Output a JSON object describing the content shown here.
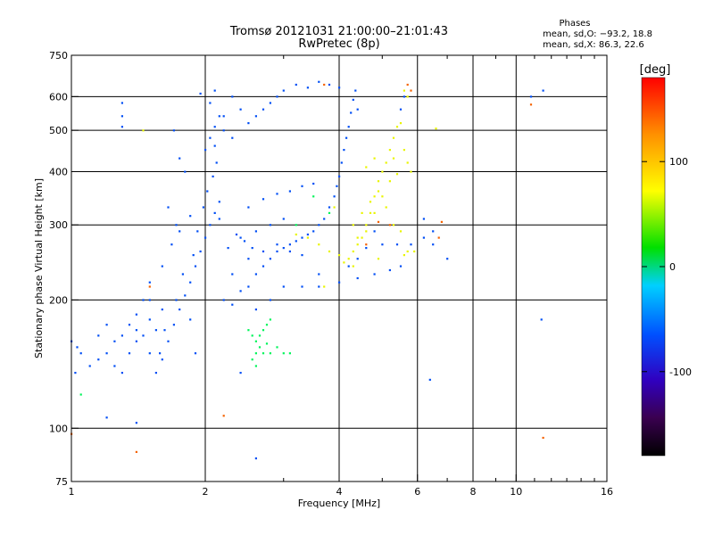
{
  "chart_data": {
    "type": "scatter",
    "title": "Tromsø 20121031 21:00:00–21:01:43",
    "subtitle": "RwPretec (8p)",
    "xlabel": "Frequency [MHz]",
    "ylabel": "Stationary phase Virtual Height [km]",
    "x_scale": "log",
    "y_scale": "log",
    "xlim": [
      1,
      16
    ],
    "ylim": [
      75,
      750
    ],
    "x_ticks": [
      1,
      2,
      4,
      6,
      8,
      10,
      16
    ],
    "x_tick_labels": [
      "1",
      "2",
      "4",
      "6",
      "8",
      "10",
      "16"
    ],
    "y_ticks": [
      75,
      100,
      200,
      300,
      400,
      500,
      600,
      750
    ],
    "y_tick_labels": [
      "75",
      "100",
      "200",
      "300",
      "400",
      "500",
      "600",
      "750"
    ],
    "x_gridlines": [
      2,
      4,
      6,
      8,
      10
    ],
    "y_gridlines": [
      100,
      200,
      300,
      400,
      500,
      600
    ],
    "phase_stats": {
      "title": "Phases",
      "o_line": "mean, sd,O: −93.2, 18.8",
      "x_line": "mean, sd,X:  86.3, 22.6"
    },
    "colorbar": {
      "label": "[deg]",
      "range": [
        -180,
        180
      ],
      "ticks": [
        100,
        0,
        -100
      ],
      "tick_labels": [
        "100",
        "0",
        "-100"
      ]
    },
    "series": [
      {
        "phase": -100,
        "points": [
          [
            1.55,
            135
          ],
          [
            1.6,
            145
          ],
          [
            1.65,
            160
          ],
          [
            1.7,
            175
          ],
          [
            1.75,
            190
          ],
          [
            1.8,
            205
          ],
          [
            1.85,
            220
          ],
          [
            1.9,
            240
          ],
          [
            1.95,
            260
          ],
          [
            2.0,
            280
          ],
          [
            2.05,
            300
          ],
          [
            2.1,
            320
          ],
          [
            2.15,
            340
          ],
          [
            1.58,
            150
          ],
          [
            1.62,
            170
          ],
          [
            1.72,
            200
          ],
          [
            1.78,
            230
          ],
          [
            1.88,
            255
          ],
          [
            1.92,
            290
          ],
          [
            1.98,
            330
          ],
          [
            2.02,
            360
          ],
          [
            2.08,
            390
          ],
          [
            2.12,
            420
          ],
          [
            2.0,
            450
          ],
          [
            2.05,
            480
          ],
          [
            2.1,
            510
          ],
          [
            2.15,
            540
          ],
          [
            2.05,
            580
          ],
          [
            1.95,
            610
          ],
          [
            2.1,
            620
          ],
          [
            1.7,
            500
          ],
          [
            1.75,
            430
          ],
          [
            1.8,
            400
          ],
          [
            1.65,
            330
          ],
          [
            1.72,
            300
          ],
          [
            1.68,
            270
          ],
          [
            1.6,
            240
          ],
          [
            1.5,
            220
          ],
          [
            1.45,
            200
          ],
          [
            1.4,
            185
          ],
          [
            1.35,
            175
          ],
          [
            1.3,
            165
          ],
          [
            1.25,
            160
          ],
          [
            1.2,
            150
          ],
          [
            1.15,
            145
          ],
          [
            1.1,
            140
          ],
          [
            1.05,
            150
          ],
          [
            1.02,
            135
          ],
          [
            1.03,
            155
          ],
          [
            1.25,
            140
          ],
          [
            1.3,
            135
          ],
          [
            1.35,
            150
          ],
          [
            1.45,
            165
          ],
          [
            1.55,
            170
          ],
          [
            1.6,
            190
          ],
          [
            1.85,
            180
          ],
          [
            2.2,
            200
          ],
          [
            2.3,
            195
          ],
          [
            2.4,
            210
          ],
          [
            2.5,
            215
          ],
          [
            2.6,
            230
          ],
          [
            2.7,
            240
          ],
          [
            2.8,
            250
          ],
          [
            2.9,
            260
          ],
          [
            3.0,
            265
          ],
          [
            3.1,
            270
          ],
          [
            3.2,
            275
          ],
          [
            3.3,
            280
          ],
          [
            3.4,
            285
          ],
          [
            3.5,
            290
          ],
          [
            3.6,
            300
          ],
          [
            3.7,
            310
          ],
          [
            3.8,
            330
          ],
          [
            3.9,
            350
          ],
          [
            3.95,
            370
          ],
          [
            4.0,
            390
          ],
          [
            4.05,
            420
          ],
          [
            4.1,
            450
          ],
          [
            4.15,
            480
          ],
          [
            4.2,
            510
          ],
          [
            4.25,
            550
          ],
          [
            4.3,
            590
          ],
          [
            4.35,
            620
          ],
          [
            4.4,
            560
          ],
          [
            2.3,
            230
          ],
          [
            2.5,
            250
          ],
          [
            2.7,
            260
          ],
          [
            2.9,
            270
          ],
          [
            3.1,
            260
          ],
          [
            3.3,
            255
          ],
          [
            2.4,
            280
          ],
          [
            2.6,
            290
          ],
          [
            2.8,
            300
          ],
          [
            3.0,
            310
          ],
          [
            2.5,
            520
          ],
          [
            2.6,
            540
          ],
          [
            2.7,
            560
          ],
          [
            2.8,
            580
          ],
          [
            2.9,
            600
          ],
          [
            3.0,
            620
          ],
          [
            3.2,
            640
          ],
          [
            3.4,
            630
          ],
          [
            3.6,
            650
          ],
          [
            3.8,
            640
          ],
          [
            4.0,
            630
          ],
          [
            2.3,
            600
          ],
          [
            2.4,
            560
          ],
          [
            2.2,
            540
          ],
          [
            2.2,
            500
          ],
          [
            2.3,
            480
          ],
          [
            2.1,
            460
          ],
          [
            1.3,
            580
          ],
          [
            1.3,
            540
          ],
          [
            1.5,
            200
          ],
          [
            1.5,
            180
          ],
          [
            1.4,
            170
          ],
          [
            1.2,
            175
          ],
          [
            1.15,
            165
          ],
          [
            1.0,
            160
          ],
          [
            2.35,
            285
          ],
          [
            2.45,
            275
          ],
          [
            2.55,
            265
          ],
          [
            3.0,
            215
          ],
          [
            3.3,
            215
          ],
          [
            3.6,
            215
          ],
          [
            4.0,
            220
          ],
          [
            4.4,
            225
          ],
          [
            4.8,
            230
          ],
          [
            5.2,
            235
          ],
          [
            5.5,
            240
          ],
          [
            4.6,
            265
          ],
          [
            5.0,
            270
          ],
          [
            5.4,
            270
          ],
          [
            5.8,
            270
          ],
          [
            4.8,
            290
          ],
          [
            6.2,
            280
          ],
          [
            6.5,
            270
          ],
          [
            7.0,
            250
          ],
          [
            6.2,
            310
          ],
          [
            6.5,
            290
          ],
          [
            11.4,
            180
          ],
          [
            10.8,
            600
          ],
          [
            11.5,
            620
          ],
          [
            5.6,
            600
          ],
          [
            5.5,
            560
          ],
          [
            1.3,
            510
          ],
          [
            1.4,
            160
          ],
          [
            1.5,
            150
          ],
          [
            1.9,
            150
          ],
          [
            2.5,
            330
          ],
          [
            2.7,
            345
          ],
          [
            2.9,
            355
          ],
          [
            3.1,
            360
          ],
          [
            3.3,
            370
          ],
          [
            3.5,
            375
          ],
          [
            2.6,
            190
          ],
          [
            2.8,
            200
          ],
          [
            2.4,
            135
          ],
          [
            6.4,
            130
          ],
          [
            2.6,
            85
          ],
          [
            1.4,
            103
          ],
          [
            1.2,
            106
          ],
          [
            3.6,
            230
          ],
          [
            4.2,
            240
          ],
          [
            4.4,
            250
          ],
          [
            2.15,
            310
          ],
          [
            1.85,
            315
          ],
          [
            1.75,
            290
          ],
          [
            2.25,
            265
          ]
        ]
      },
      {
        "phase": 0,
        "points": [
          [
            2.5,
            170
          ],
          [
            2.55,
            165
          ],
          [
            2.6,
            160
          ],
          [
            2.65,
            155
          ],
          [
            2.7,
            150
          ],
          [
            2.75,
            158
          ],
          [
            2.8,
            150
          ],
          [
            2.9,
            155
          ],
          [
            3.0,
            150
          ],
          [
            3.1,
            150
          ],
          [
            2.55,
            145
          ],
          [
            2.6,
            140
          ],
          [
            2.65,
            165
          ],
          [
            2.7,
            170
          ],
          [
            2.75,
            175
          ],
          [
            2.8,
            180
          ],
          [
            2.6,
            150
          ],
          [
            1.05,
            120
          ],
          [
            3.5,
            350
          ],
          [
            3.2,
            300
          ],
          [
            3.8,
            320
          ]
        ]
      },
      {
        "phase": 100,
        "points": [
          [
            4.2,
            250
          ],
          [
            4.3,
            260
          ],
          [
            4.4,
            270
          ],
          [
            4.5,
            280
          ],
          [
            4.6,
            300
          ],
          [
            4.7,
            320
          ],
          [
            4.8,
            350
          ],
          [
            4.9,
            380
          ],
          [
            5.0,
            400
          ],
          [
            5.1,
            420
          ],
          [
            5.2,
            450
          ],
          [
            5.3,
            480
          ],
          [
            5.4,
            510
          ],
          [
            5.5,
            520
          ],
          [
            5.6,
            450
          ],
          [
            5.7,
            420
          ],
          [
            5.8,
            400
          ],
          [
            5.2,
            380
          ],
          [
            5.0,
            350
          ],
          [
            4.8,
            320
          ],
          [
            4.6,
            290
          ],
          [
            4.4,
            280
          ],
          [
            4.3,
            300
          ],
          [
            4.5,
            320
          ],
          [
            4.7,
            340
          ],
          [
            4.9,
            360
          ],
          [
            5.1,
            330
          ],
          [
            5.3,
            300
          ],
          [
            5.5,
            290
          ],
          [
            3.6,
            270
          ],
          [
            3.8,
            260
          ],
          [
            4.0,
            255
          ],
          [
            3.4,
            280
          ],
          [
            3.2,
            285
          ],
          [
            4.9,
            250
          ],
          [
            5.6,
            255
          ],
          [
            5.9,
            260
          ],
          [
            6.6,
            505
          ],
          [
            5.3,
            430
          ],
          [
            4.8,
            430
          ],
          [
            4.6,
            410
          ],
          [
            5.4,
            395
          ],
          [
            4.3,
            240
          ],
          [
            4.1,
            245
          ],
          [
            5.7,
            260
          ],
          [
            5.7,
            600
          ],
          [
            5.6,
            620
          ],
          [
            1.45,
            500
          ],
          [
            3.7,
            215
          ],
          [
            3.9,
            330
          ]
        ]
      },
      {
        "phase": 150,
        "points": [
          [
            5.8,
            620
          ],
          [
            5.7,
            640
          ],
          [
            4.6,
            270
          ],
          [
            4.9,
            305
          ],
          [
            5.2,
            300
          ],
          [
            3.7,
            640
          ],
          [
            6.8,
            305
          ],
          [
            6.7,
            280
          ],
          [
            11.5,
            95
          ],
          [
            10.8,
            575
          ],
          [
            2.2,
            107
          ],
          [
            1.4,
            88
          ],
          [
            1.0,
            97
          ],
          [
            1.5,
            215
          ]
        ]
      }
    ]
  }
}
